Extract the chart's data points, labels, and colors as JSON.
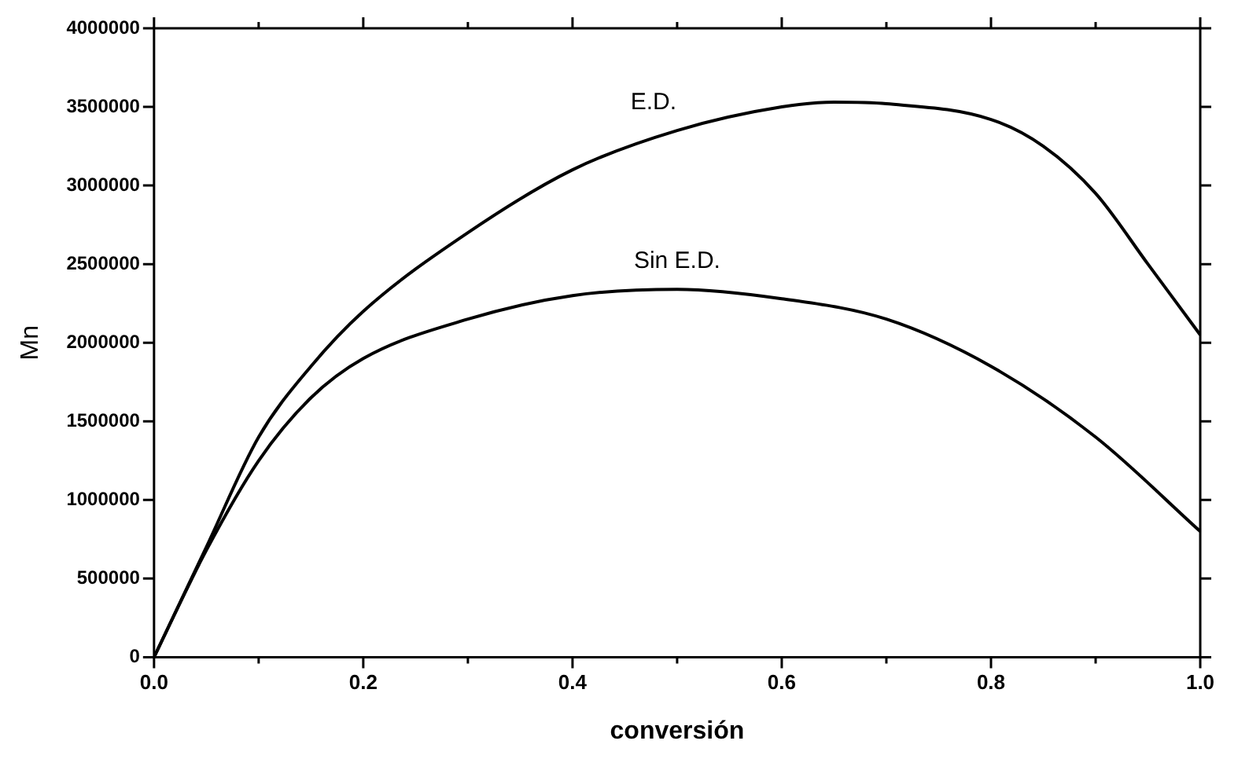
{
  "chart_data": {
    "type": "line",
    "xlabel": "conversión",
    "ylabel": "Mn",
    "xlim": [
      0,
      1
    ],
    "ylim": [
      0,
      4000000
    ],
    "xticks": [
      {
        "value": 0,
        "label": "0.0"
      },
      {
        "value": 0.1,
        "label": null
      },
      {
        "value": 0.2,
        "label": "0.2"
      },
      {
        "value": 0.3,
        "label": null
      },
      {
        "value": 0.4,
        "label": "0.4"
      },
      {
        "value": 0.5,
        "label": null
      },
      {
        "value": 0.6,
        "label": "0.6"
      },
      {
        "value": 0.7,
        "label": null
      },
      {
        "value": 0.8,
        "label": "0.8"
      },
      {
        "value": 0.9,
        "label": null
      },
      {
        "value": 1,
        "label": "1.0"
      }
    ],
    "yticks": [
      0,
      500000,
      1000000,
      1500000,
      2000000,
      2500000,
      3000000,
      3500000,
      4000000
    ],
    "grid": false,
    "legend": false,
    "marker": "none",
    "line_style": "solid",
    "series": [
      {
        "name": "E.D.",
        "color": "#000000",
        "x": [
          0,
          0.05,
          0.1,
          0.15,
          0.2,
          0.3,
          0.4,
          0.5,
          0.6,
          0.65,
          0.7,
          0.8,
          0.85,
          0.9,
          0.95,
          1.0
        ],
        "values": [
          0,
          700000,
          1400000,
          1850000,
          2200000,
          2700000,
          3100000,
          3350000,
          3500000,
          3530000,
          3520000,
          3420000,
          3250000,
          2950000,
          2500000,
          2050000
        ]
      },
      {
        "name": "Sin E.D.",
        "color": "#000000",
        "x": [
          0,
          0.05,
          0.1,
          0.15,
          0.2,
          0.3,
          0.4,
          0.5,
          0.6,
          0.7,
          0.8,
          0.9,
          1.0
        ],
        "values": [
          0,
          680000,
          1250000,
          1650000,
          1900000,
          2150000,
          2300000,
          2340000,
          2280000,
          2150000,
          1850000,
          1400000,
          800000
        ]
      }
    ]
  }
}
